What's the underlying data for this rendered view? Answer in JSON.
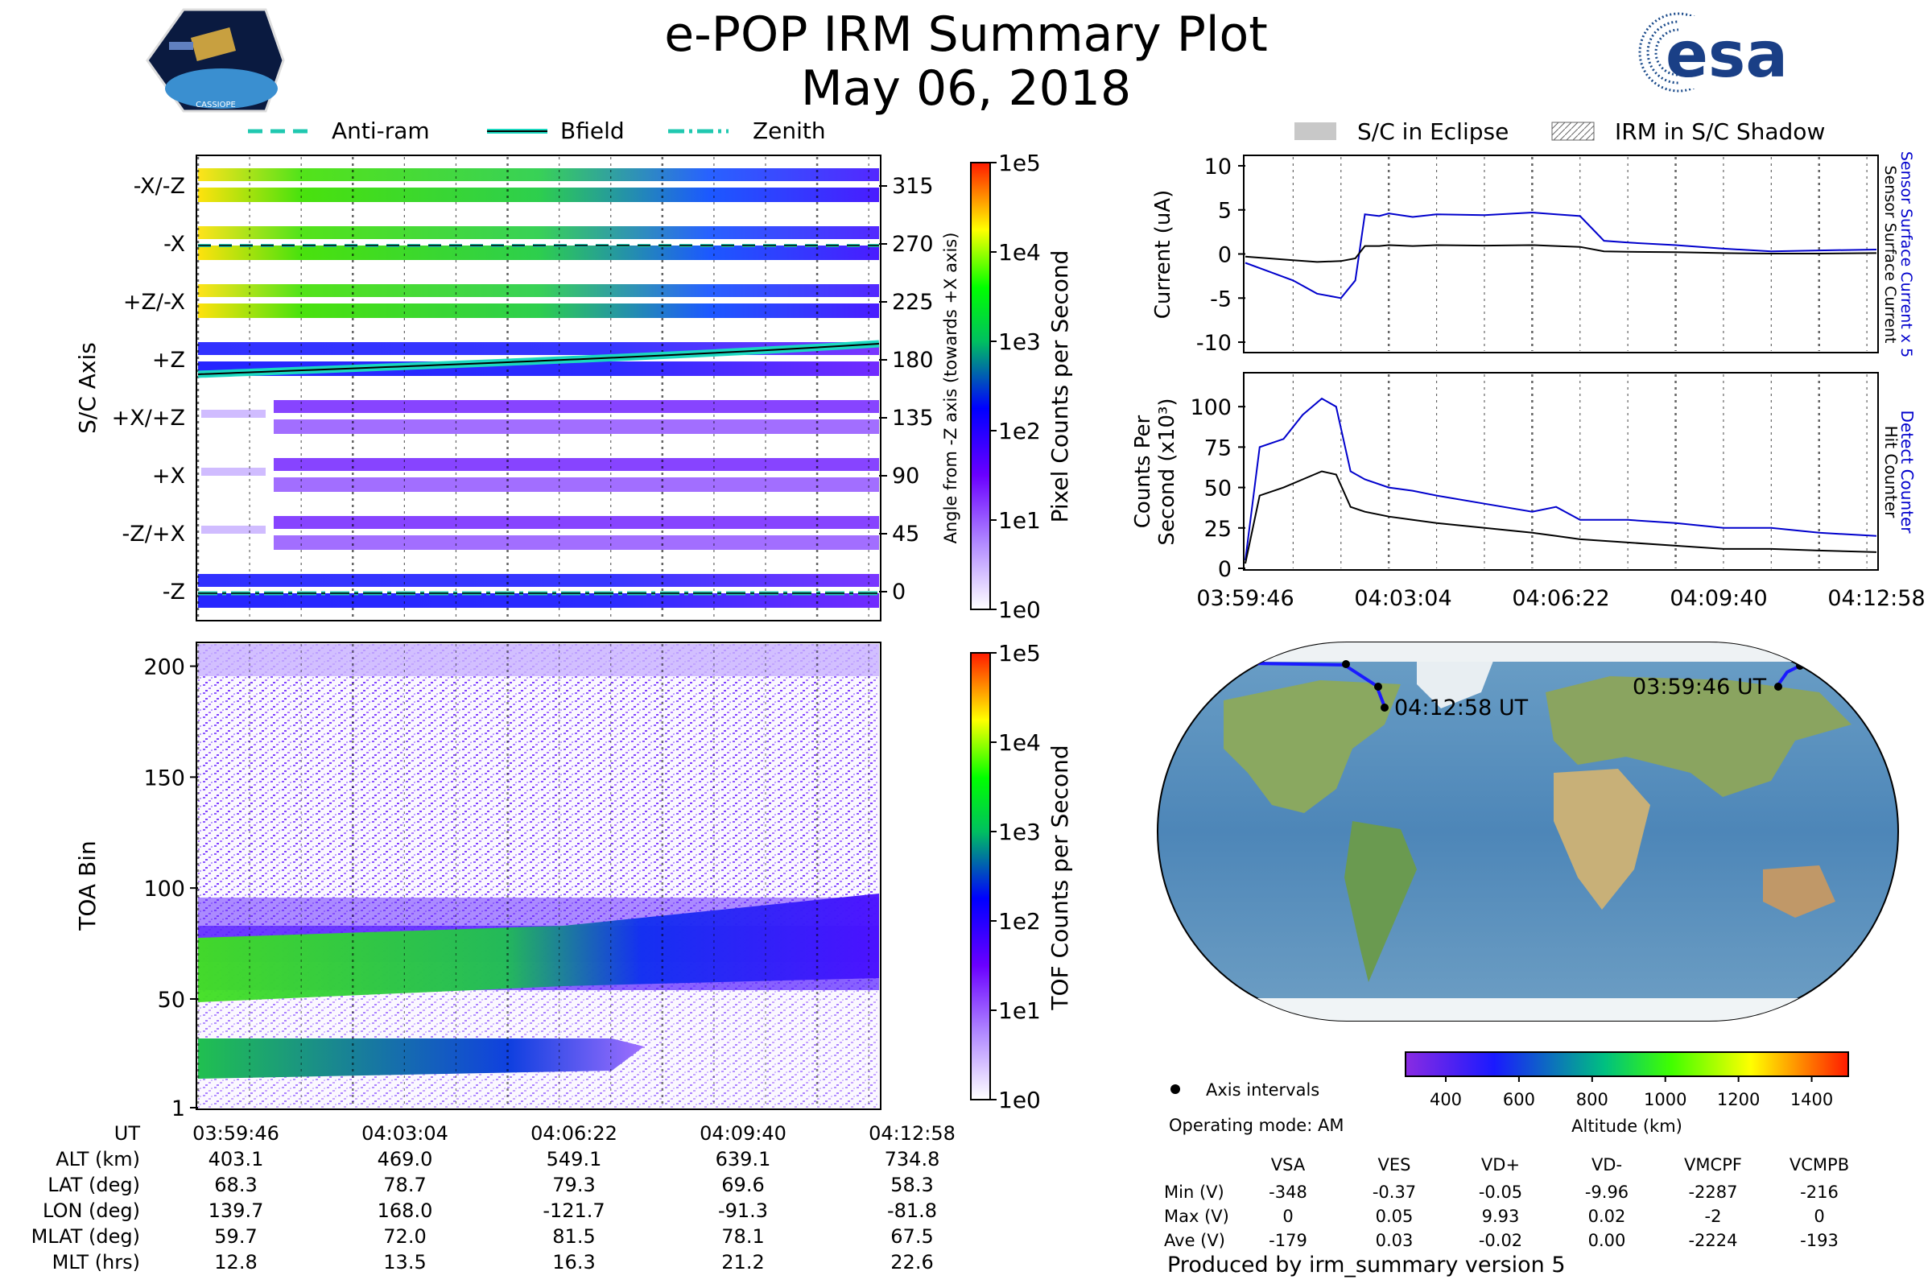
{
  "header": {
    "title": "e-POP IRM Summary Plot",
    "date": "May 06, 2018",
    "left_logo_text": "CASSIOPE",
    "right_logo_text": "esa"
  },
  "legend_top_left": [
    "Anti-ram",
    "Bfield",
    "Zenith"
  ],
  "legend_top_right": [
    "S/C in Eclipse",
    "IRM in S/C Shadow"
  ],
  "colors": {
    "current_blue": "#0000cc",
    "counts_black": "#000000",
    "track_blue": "#1a1aff",
    "bfield_line": "#1ad8c0",
    "dashed_line": "#20c8b0"
  },
  "chart_data": [
    {
      "id": "pixel-spectrogram",
      "type": "heatmap",
      "ylabel": "S/C Axis",
      "yticks": [
        "-X/-Z",
        "-X",
        "+Z/-X",
        "+Z",
        "+X/+Z",
        "+X",
        "-Z/+X",
        "-Z"
      ],
      "right_ylabel": "Angle from -Z axis (towards +X axis)",
      "right_ticks": [
        315,
        270,
        225,
        180,
        135,
        90,
        45,
        0
      ],
      "colorbar_label": "Pixel Counts per Second",
      "colorbar_ticks": [
        "1e5",
        "1e4",
        "1e3",
        "1e2",
        "1e1",
        "1e0"
      ]
    },
    {
      "id": "toa-spectrogram",
      "type": "heatmap",
      "ylabel": "TOA Bin",
      "yticks": [
        200,
        150,
        100,
        50,
        1
      ],
      "ylim": [
        1,
        210
      ],
      "bands": [
        {
          "center": 60,
          "width": 25,
          "fade_after": "04:08:00"
        },
        {
          "center": 22,
          "width": 14,
          "fade_after": "04:07:00"
        }
      ],
      "colorbar_label": "TOF Counts per Second",
      "colorbar_ticks": [
        "1e5",
        "1e4",
        "1e3",
        "1e2",
        "1e1",
        "1e0"
      ]
    },
    {
      "id": "current",
      "type": "line",
      "ylabel": "Current (uA)",
      "yticks": [
        10,
        5,
        0,
        -5,
        -10
      ],
      "ylim": [
        -11,
        11
      ],
      "right_labels": [
        "Sensor Surface Current x 5",
        "Sensor Surface Current"
      ],
      "x_minutes": [
        0,
        0.5,
        1,
        1.5,
        2,
        2.3,
        2.5,
        2.8,
        3.0,
        3.5,
        4,
        5,
        6,
        6.5,
        7,
        7.5,
        8,
        9,
        10,
        11,
        12,
        13.2
      ],
      "series": [
        {
          "name": "Sensor Surface Current x 5",
          "values": [
            -1,
            -2,
            -3,
            -4.5,
            -5,
            -3,
            4.5,
            4.3,
            4.6,
            4.2,
            4.5,
            4.4,
            4.7,
            4.5,
            4.3,
            1.5,
            1.3,
            1.0,
            0.6,
            0.3,
            0.4,
            0.5
          ]
        },
        {
          "name": "Sensor Surface Current",
          "values": [
            -0.3,
            -0.5,
            -0.7,
            -0.9,
            -0.8,
            -0.5,
            0.9,
            0.9,
            1.0,
            0.9,
            1.0,
            0.95,
            1.0,
            0.9,
            0.8,
            0.3,
            0.25,
            0.2,
            0.1,
            0.05,
            0.05,
            0.1
          ]
        }
      ]
    },
    {
      "id": "counts",
      "type": "line",
      "ylabel": "Counts Per Second (x10³)",
      "yticks": [
        100,
        75,
        50,
        25,
        0
      ],
      "ylim": [
        0,
        120
      ],
      "right_labels": [
        "Detect Counter",
        "Hit Counter"
      ],
      "x_minutes": [
        0,
        0.3,
        0.8,
        1.2,
        1.6,
        1.9,
        2.2,
        2.5,
        3,
        3.5,
        4,
        5,
        6,
        6.5,
        7,
        8,
        9,
        10,
        11,
        12,
        13.2
      ],
      "series": [
        {
          "name": "Detect Counter",
          "values": [
            5,
            75,
            80,
            95,
            105,
            100,
            60,
            55,
            50,
            48,
            45,
            40,
            35,
            38,
            30,
            30,
            28,
            25,
            25,
            22,
            20
          ]
        },
        {
          "name": "Hit Counter",
          "values": [
            3,
            45,
            50,
            55,
            60,
            58,
            38,
            35,
            32,
            30,
            28,
            25,
            22,
            20,
            18,
            16,
            14,
            12,
            12,
            11,
            10
          ]
        }
      ]
    }
  ],
  "time_axis": [
    "03:59:46",
    "04:03:04",
    "04:06:22",
    "04:09:40",
    "04:12:58"
  ],
  "ephemeris": {
    "labels": [
      "UT",
      "ALT (km)",
      "LAT (deg)",
      "LON (deg)",
      "MLAT (deg)",
      "MLT (hrs)"
    ],
    "columns": [
      [
        "03:59:46",
        "403.1",
        "68.3",
        "139.7",
        "59.7",
        "12.8"
      ],
      [
        "04:03:04",
        "469.0",
        "78.7",
        "168.0",
        "72.0",
        "13.5"
      ],
      [
        "04:06:22",
        "549.1",
        "79.3",
        "-121.7",
        "81.5",
        "16.3"
      ],
      [
        "04:09:40",
        "639.1",
        "69.6",
        "-91.3",
        "78.1",
        "21.2"
      ],
      [
        "04:12:58",
        "734.8",
        "58.3",
        "-81.8",
        "67.5",
        "22.6"
      ]
    ]
  },
  "map": {
    "start_label": "03:59:46 UT",
    "end_label": "04:12:58 UT"
  },
  "altitude_colorbar": {
    "label": "Altitude (km)",
    "ticks": [
      400,
      600,
      800,
      1000,
      1200,
      1400
    ]
  },
  "footer": {
    "axis_intervals": "Axis intervals",
    "operating_mode": "Operating mode: AM",
    "produced_by": "Produced by irm_summary version 5"
  },
  "stats": {
    "headers": [
      "VSA",
      "VES",
      "VD+",
      "VD-",
      "VMCPF",
      "VCMPB"
    ],
    "rows": [
      {
        "label": "Min (V)",
        "values": [
          "-348",
          "-0.37",
          "-0.05",
          "-9.96",
          "-2287",
          "-216"
        ]
      },
      {
        "label": "Max (V)",
        "values": [
          "0",
          "0.05",
          "9.93",
          "0.02",
          "-2",
          "0"
        ]
      },
      {
        "label": "Ave (V)",
        "values": [
          "-179",
          "0.03",
          "-0.02",
          "0.00",
          "-2224",
          "-193"
        ]
      }
    ]
  }
}
